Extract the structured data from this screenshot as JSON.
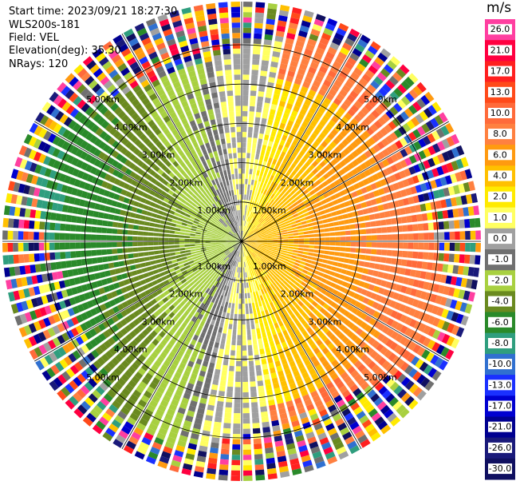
{
  "header": {
    "start_time": "Start time: 2023/09/21 18:27:30",
    "instrument": "WLS200s-181",
    "field": "Field: VEL",
    "elevation": "Elevation(deg): 35.30",
    "nrays": "NRays: 120"
  },
  "colorbar": {
    "unit": "m/s",
    "ticks": [
      "26.0",
      "21.0",
      "17.0",
      "13.0",
      "10.0",
      "8.0",
      "6.0",
      "4.0",
      "2.0",
      "1.0",
      "0.0",
      "-1.0",
      "-2.0",
      "-4.0",
      "-6.0",
      "-8.0",
      "-10.0",
      "-13.0",
      "-17.0",
      "-21.0",
      "-26.0",
      "-30.0"
    ],
    "colors": [
      "#ff3fa0",
      "#ff0040",
      "#ff2020",
      "#ff4a1a",
      "#ff6a3a",
      "#ff8040",
      "#ff9a10",
      "#ffc000",
      "#ffea00",
      "#ffff60",
      "#a0a0a0",
      "#707070",
      "#a8d040",
      "#6a8a20",
      "#2a8a2a",
      "#2f9e7e",
      "#3070d0",
      "#1a30ff",
      "#0000d0",
      "#000090",
      "#1a1a7a",
      "#101060"
    ]
  },
  "chart_data": {
    "type": "ppi",
    "field": "VEL",
    "units": "m/s",
    "vmin": -30.0,
    "vmax": 26.0,
    "nrays": 120,
    "elevation_deg": 35.3,
    "range_ring_labels": [
      "1.00km",
      "2.00km",
      "3.00km",
      "4.00km",
      "5.00km"
    ],
    "range_ring_km": [
      1,
      2,
      3,
      4,
      5
    ],
    "max_range_km": 5.0,
    "regions": [
      {
        "description": "approaching (green, negative)",
        "azimuth_deg_center": 270,
        "velocity_ms": -6.0
      },
      {
        "description": "receding (yellow/orange, positive)",
        "azimuth_deg_center": 90,
        "velocity_ms": 6.0
      },
      {
        "description": "near-zero transition (gray)",
        "azimuth_deg_center": 0,
        "velocity_ms": 0.0
      }
    ]
  }
}
